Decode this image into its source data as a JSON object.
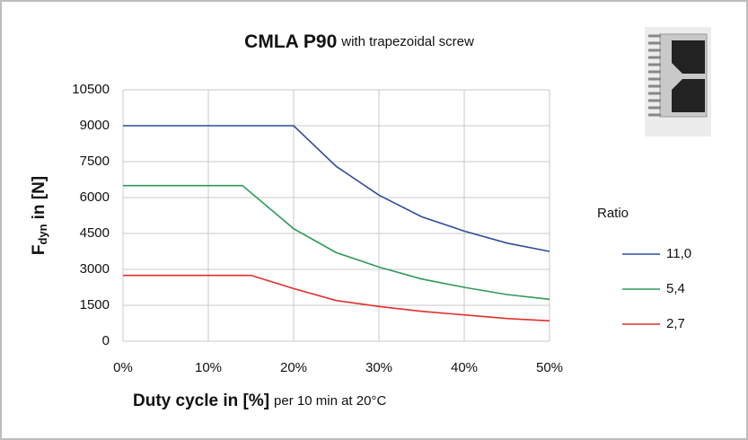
{
  "chart_data": {
    "type": "line",
    "title": "CMLA P90",
    "subtitle": "with trapezoidal screw",
    "xlabel": "Duty cycle in [%]",
    "xlabel_note": "per 10 min at 20°C",
    "ylabel": {
      "symbol": "F",
      "subscript": "dyn",
      "text": "in [N]"
    },
    "legend_title": "Ratio",
    "xlim": [
      0,
      50
    ],
    "xticks": [
      {
        "value": 0,
        "label": "0%"
      },
      {
        "value": 10,
        "label": "10%"
      },
      {
        "value": 20,
        "label": "20%"
      },
      {
        "value": 30,
        "label": "30%"
      },
      {
        "value": 40,
        "label": "40%"
      },
      {
        "value": 50,
        "label": "50%"
      }
    ],
    "ylim": [
      0,
      10500
    ],
    "yticks": [
      0,
      1500,
      3000,
      4500,
      6000,
      7500,
      9000,
      10500
    ],
    "grid": true,
    "series": [
      {
        "name": "11,0",
        "color": "#2e4d9b",
        "x": [
          0,
          20,
          25,
          30,
          35,
          40,
          45,
          50
        ],
        "values": [
          9000,
          9000,
          7300,
          6100,
          5200,
          4600,
          4100,
          3750
        ]
      },
      {
        "name": "5,4",
        "color": "#2e9a5a",
        "x": [
          0,
          14,
          15,
          20,
          25,
          30,
          35,
          40,
          45,
          50
        ],
        "values": [
          6500,
          6500,
          6200,
          4700,
          3700,
          3100,
          2600,
          2250,
          1950,
          1750
        ]
      },
      {
        "name": "2,7",
        "color": "#e0302a",
        "x": [
          0,
          15,
          20,
          25,
          30,
          35,
          40,
          45,
          50
        ],
        "values": [
          2750,
          2750,
          2200,
          1700,
          1450,
          1250,
          1100,
          950,
          850
        ]
      }
    ]
  }
}
